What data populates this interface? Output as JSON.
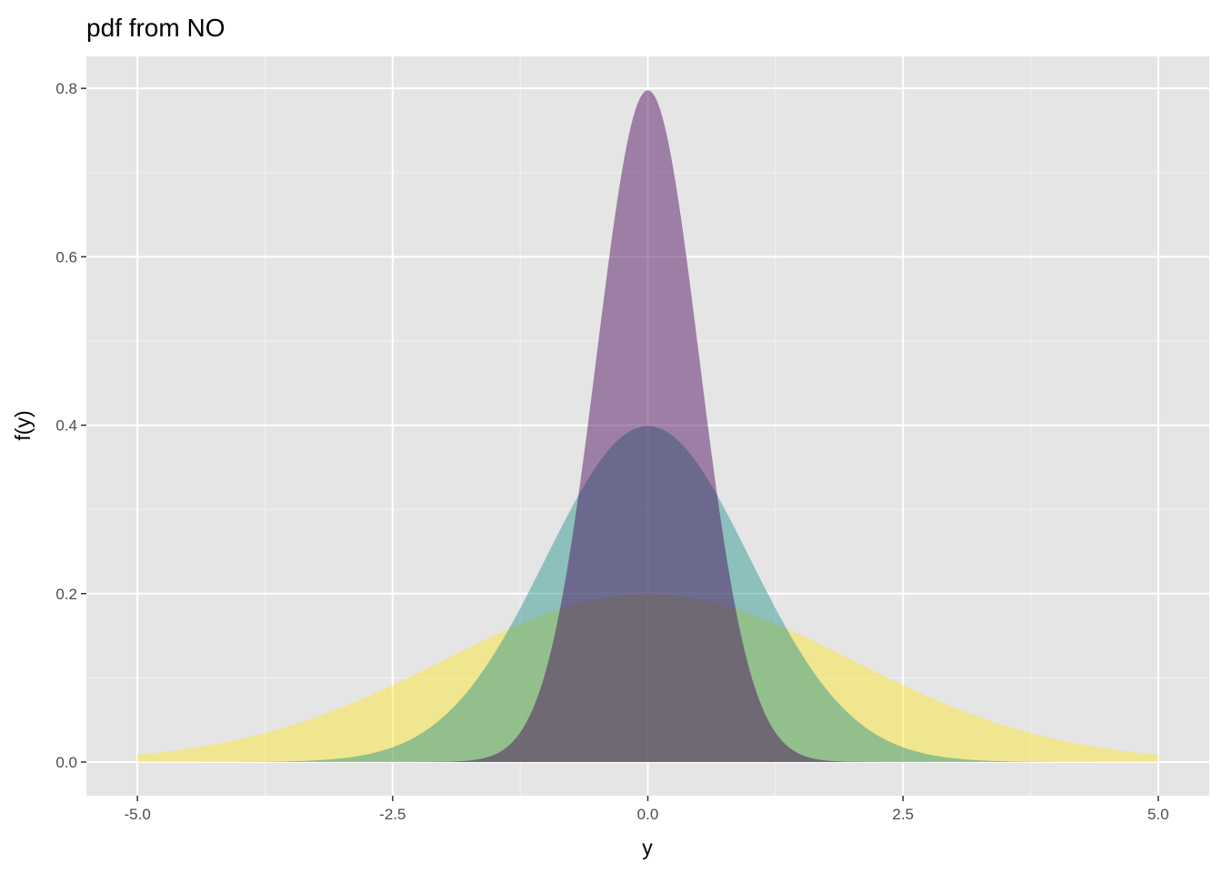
{
  "chart_data": {
    "type": "area",
    "title": "pdf from  NO",
    "xlabel": "y",
    "ylabel": "f(y)",
    "xlim": [
      -5.5,
      5.5
    ],
    "ylim": [
      -0.04,
      0.838
    ],
    "x_range": [
      -5,
      5
    ],
    "x_ticks": [
      -5,
      -2.5,
      0,
      2.5,
      5
    ],
    "x_tick_labels": [
      "-5.0",
      "-2.5",
      "0.0",
      "2.5",
      "5.0"
    ],
    "y_ticks": [
      0,
      0.2,
      0.4,
      0.6,
      0.8
    ],
    "y_tick_labels": [
      "0.0",
      "0.2",
      "0.4",
      "0.6",
      "0.8"
    ],
    "grid": true,
    "series": [
      {
        "distribution": "NO",
        "mu": 0,
        "sigma": 2,
        "color": "#FDE725"
      },
      {
        "distribution": "NO",
        "mu": 0,
        "sigma": 1,
        "color": "#21908C"
      },
      {
        "distribution": "NO",
        "mu": 0,
        "sigma": 0.5,
        "color": "#440154"
      }
    ]
  }
}
